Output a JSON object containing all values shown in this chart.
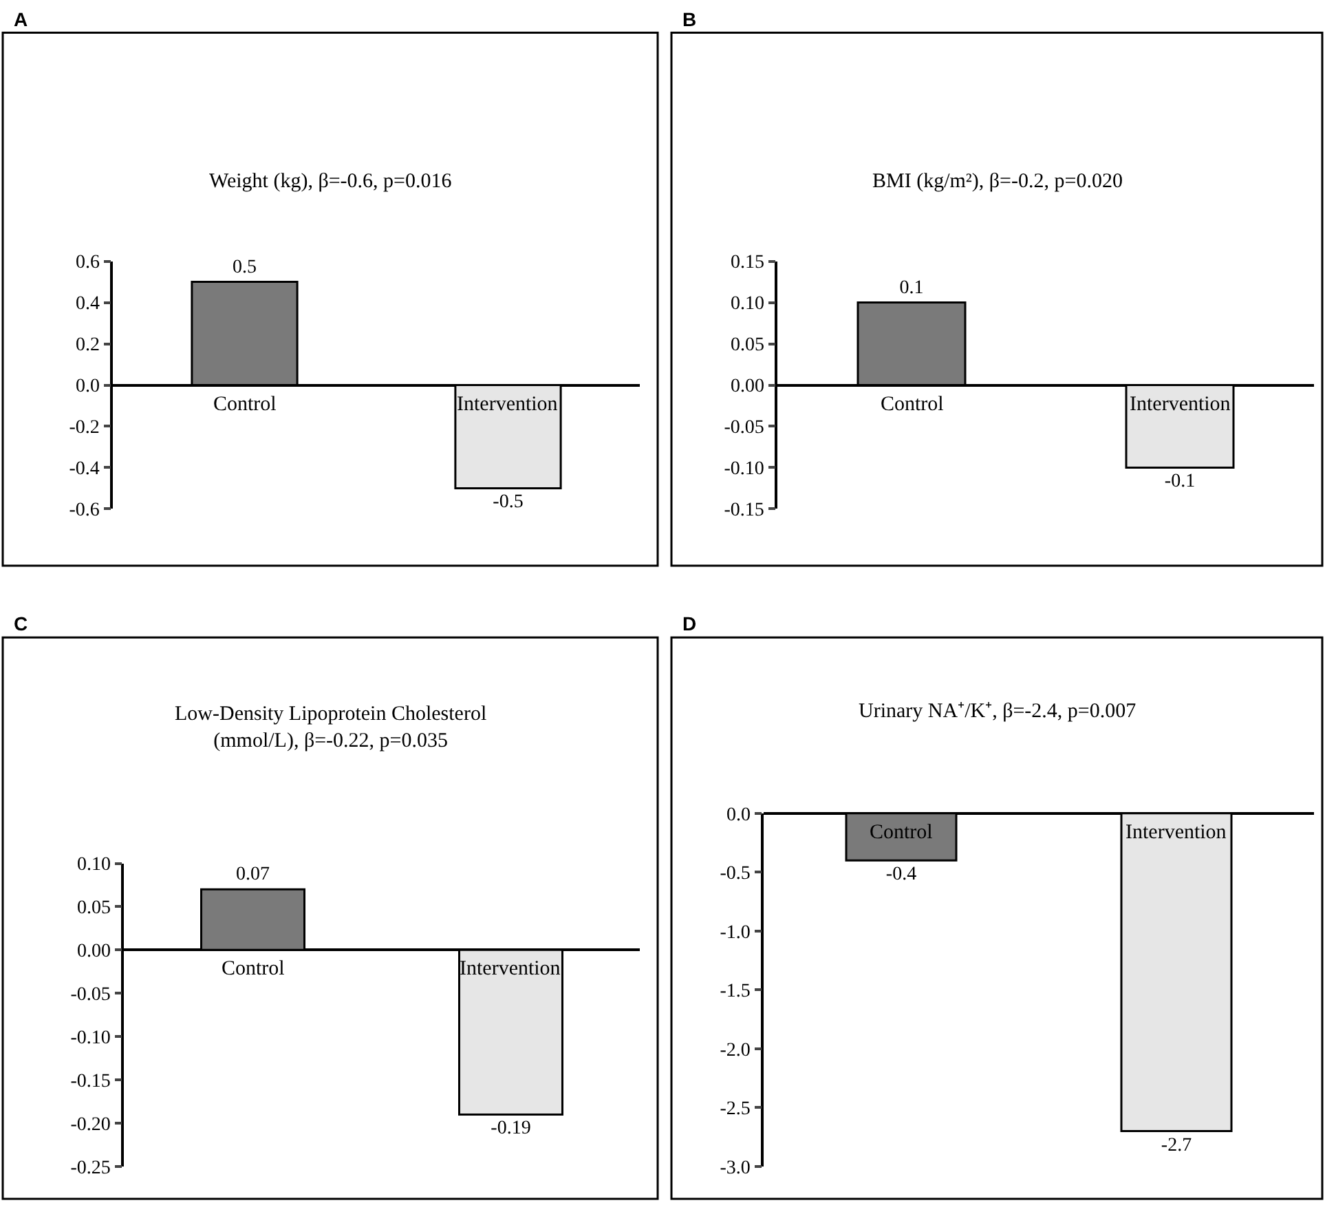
{
  "chart_data": [
    {
      "type": "bar",
      "title": "Weight (kg), β=-0.6, p=0.016",
      "annotations": [
        "A"
      ],
      "categories": [
        "Control",
        "Intervention"
      ],
      "values": [
        0.5,
        -0.5
      ],
      "colors": [
        "#7a7a7a",
        "#e6e6e6"
      ],
      "ylim": [
        -0.6,
        0.6
      ],
      "yticks": [
        -0.6,
        -0.4,
        -0.2,
        {
          "value": 0,
          "label": "0.0"
        },
        0.2,
        0.4,
        0.6
      ],
      "data_labels": true
    },
    {
      "type": "bar",
      "title": "BMI (kg/m²), β=-0.2, p=0.020",
      "annotations": [
        "B"
      ],
      "categories": [
        "Control",
        "Intervention"
      ],
      "values": [
        0.1,
        -0.1
      ],
      "colors": [
        "#7a7a7a",
        "#e6e6e6"
      ],
      "ylim": [
        -0.15,
        0.15
      ],
      "yticks": [
        -0.15,
        {
          "value": -0.1,
          "label": "-0.10"
        },
        -0.05,
        {
          "value": 0,
          "label": "0.00"
        },
        0.05,
        {
          "value": 0.1,
          "label": "0.10"
        },
        0.15
      ],
      "data_labels": true
    },
    {
      "type": "bar",
      "title": "Low-Density Lipoprotein Cholesterol\n(mmol/L), β=-0.22, p=0.035",
      "annotations": [
        "C"
      ],
      "categories": [
        "Control",
        "Intervention"
      ],
      "values": [
        0.07,
        -0.19
      ],
      "colors": [
        "#7a7a7a",
        "#e6e6e6"
      ],
      "ylim": [
        -0.25,
        0.1
      ],
      "yticks": [
        -0.25,
        {
          "value": -0.2,
          "label": "-0.20"
        },
        -0.15,
        {
          "value": -0.1,
          "label": "-0.10"
        },
        -0.05,
        {
          "value": 0,
          "label": "0.00"
        },
        0.05,
        {
          "value": 0.1,
          "label": "0.10"
        }
      ],
      "data_labels": true
    },
    {
      "type": "bar",
      "title": "Urinary NA⁺/K⁺, β=-2.4, p=0.007",
      "annotations": [
        "D"
      ],
      "categories": [
        "Control",
        "Intervention"
      ],
      "values": [
        -0.4,
        -2.7
      ],
      "colors": [
        "#7a7a7a",
        "#e6e6e6"
      ],
      "ylim": [
        -3.0,
        0.0
      ],
      "yticks": [
        {
          "value": -3,
          "label": "-3.0"
        },
        -2.5,
        {
          "value": -2,
          "label": "-2.0"
        },
        -1.5,
        {
          "value": -1,
          "label": "-1.0"
        },
        -0.5,
        {
          "value": 0,
          "label": "0.0"
        }
      ],
      "data_labels": true
    }
  ]
}
